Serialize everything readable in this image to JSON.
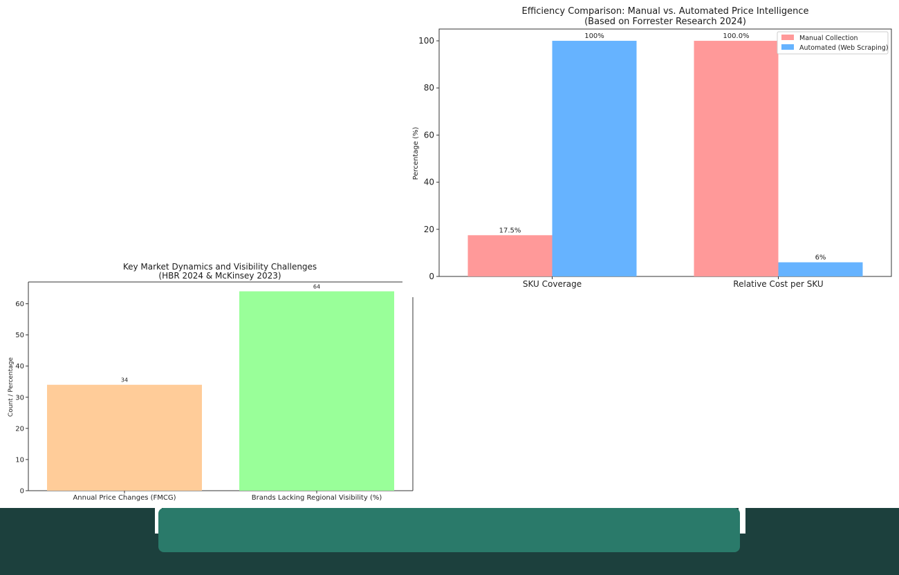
{
  "chart_data": [
    {
      "id": "efficiency",
      "type": "bar",
      "title": "Efficiency Comparison: Manual vs. Automated Price Intelligence",
      "subtitle": "(Based on Forrester Research 2024)",
      "xlabel": "",
      "ylabel": "Percentage (%)",
      "ylim": [
        0,
        105
      ],
      "yticks": [
        0,
        20,
        40,
        60,
        80,
        100
      ],
      "categories": [
        "SKU Coverage",
        "Relative Cost per SKU"
      ],
      "series": [
        {
          "name": "Manual Collection",
          "color": "#ff9999",
          "values": [
            17.5,
            100.0
          ],
          "labels": [
            "17.5%",
            "100.0%"
          ]
        },
        {
          "name": "Automated (Web Scraping)",
          "color": "#66b3ff",
          "values": [
            100,
            6
          ],
          "labels": [
            "100%",
            "6%"
          ]
        }
      ],
      "legend": "top-right",
      "grid": false
    },
    {
      "id": "dynamics",
      "type": "bar",
      "title": "Key Market Dynamics and Visibility Challenges",
      "subtitle": "(HBR 2024 & McKinsey 2023)",
      "xlabel": "",
      "ylabel": "Count / Percentage",
      "ylim": [
        0,
        67
      ],
      "yticks": [
        0,
        10,
        20,
        30,
        40,
        50,
        60
      ],
      "categories": [
        "Annual Price Changes (FMCG)",
        "Brands Lacking Regional Visibility (%)"
      ],
      "values": [
        34,
        64
      ],
      "labels": [
        "34",
        "64"
      ],
      "colors": [
        "#ffcc99",
        "#99ff99"
      ],
      "grid": false
    }
  ],
  "colors": {
    "footer_dark": "#1c403d",
    "footer_panel": "#2a7a6a"
  }
}
